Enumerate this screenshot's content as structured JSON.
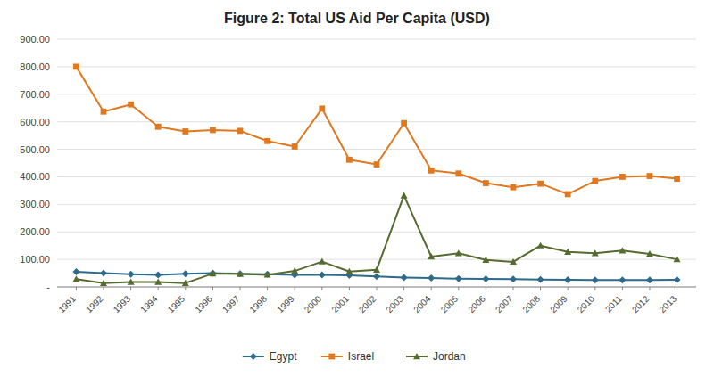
{
  "chart_data": {
    "type": "line",
    "title": "Figure 2: Total US Aid Per Capita (USD)",
    "x": [
      1991,
      1992,
      1993,
      1994,
      1995,
      1996,
      1997,
      1998,
      1999,
      2000,
      2001,
      2002,
      2003,
      2004,
      2005,
      2006,
      2007,
      2008,
      2009,
      2010,
      2011,
      2012,
      2013
    ],
    "xlim": [
      1990.3,
      2013.7
    ],
    "xticks": [
      1991,
      1992,
      1993,
      1994,
      1995,
      1996,
      1997,
      1998,
      1999,
      2000,
      2001,
      2002,
      2003,
      2004,
      2005,
      2006,
      2007,
      2008,
      2009,
      2010,
      2011,
      2012,
      2013
    ],
    "ylim": [
      0,
      900
    ],
    "yticks": [
      {
        "value": 0,
        "label": "-"
      },
      {
        "value": 100,
        "label": "100.00"
      },
      {
        "value": 200,
        "label": "200.00"
      },
      {
        "value": 300,
        "label": "300.00"
      },
      {
        "value": 400,
        "label": "400.00"
      },
      {
        "value": 500,
        "label": "500.00"
      },
      {
        "value": 600,
        "label": "600.00"
      },
      {
        "value": 700,
        "label": "700.00"
      },
      {
        "value": 800,
        "label": "800.00"
      },
      {
        "value": 900,
        "label": "900.00"
      }
    ],
    "grid": true,
    "legend": "bottom",
    "series": [
      {
        "name": "Egypt",
        "color": "#2E6B8A",
        "marker": "diamond",
        "values": [
          55,
          50,
          46,
          44,
          48,
          50,
          48,
          46,
          44,
          44,
          42,
          38,
          34,
          32,
          30,
          29,
          28,
          27,
          26,
          25,
          25,
          25,
          26
        ]
      },
      {
        "name": "Israel",
        "color": "#E07820",
        "marker": "square",
        "values": [
          800,
          637,
          663,
          582,
          565,
          570,
          567,
          530,
          510,
          648,
          462,
          445,
          595,
          423,
          412,
          377,
          362,
          375,
          337,
          385,
          400,
          403,
          393
        ]
      },
      {
        "name": "Jordan",
        "color": "#556B2F",
        "marker": "triangle",
        "values": [
          28,
          14,
          18,
          18,
          14,
          48,
          47,
          44,
          58,
          92,
          56,
          62,
          332,
          110,
          122,
          98,
          91,
          150,
          127,
          122,
          132,
          120,
          100
        ]
      }
    ]
  }
}
